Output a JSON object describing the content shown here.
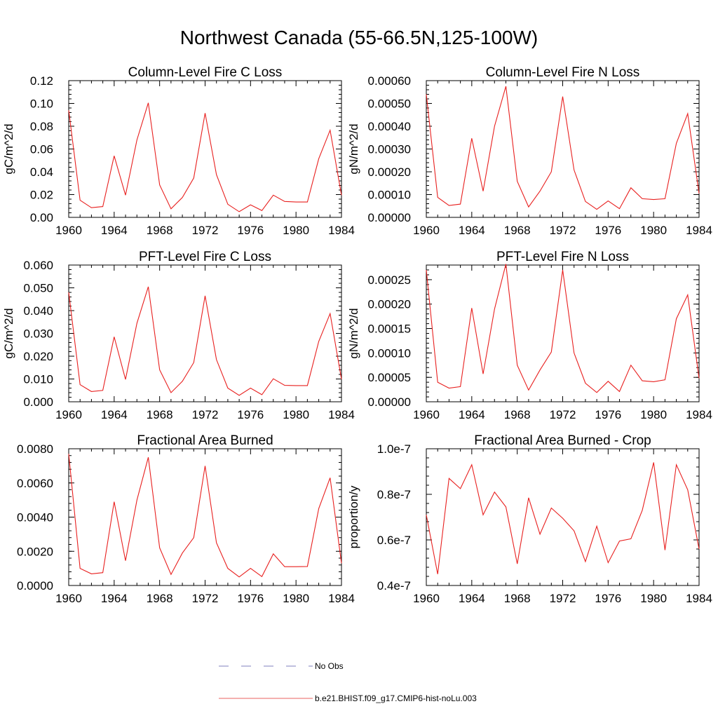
{
  "title": "Northwest Canada (55-66.5N,125-100W)",
  "legend": [
    {
      "label": "No Obs",
      "color": "#7f7fbf",
      "dash": true
    },
    {
      "label": "b.e21.BHIST.f09_g17.CMIP6-hist-noLu.003",
      "color": "#e8605f",
      "dash": false
    }
  ],
  "chart_data": [
    {
      "type": "line",
      "title": "Column-Level Fire C Loss",
      "xlabel": "",
      "ylabel": "gC/m^2/d",
      "xlim": [
        1960,
        1984
      ],
      "ylim": [
        0,
        0.12
      ],
      "xticks": [
        1960,
        1964,
        1968,
        1972,
        1976,
        1980,
        1984
      ],
      "yticks": [
        0,
        0.02,
        0.04,
        0.06,
        0.08,
        0.1,
        0.12
      ],
      "ytick_labels": [
        "0.00",
        "0.02",
        "0.04",
        "0.06",
        "0.08",
        "0.10",
        "0.12"
      ],
      "x": [
        1960,
        1961,
        1962,
        1963,
        1964,
        1965,
        1966,
        1967,
        1968,
        1969,
        1970,
        1971,
        1972,
        1973,
        1974,
        1975,
        1976,
        1977,
        1978,
        1979,
        1980,
        1981,
        1982,
        1983,
        1984
      ],
      "series": [
        {
          "values": [
            0.094,
            0.015,
            0.0085,
            0.0095,
            0.054,
            0.0195,
            0.068,
            0.1005,
            0.0285,
            0.0075,
            0.0175,
            0.0345,
            0.0915,
            0.0375,
            0.0115,
            0.005,
            0.011,
            0.006,
            0.0195,
            0.014,
            0.0135,
            0.0135,
            0.0515,
            0.0765,
            0.0195
          ],
          "color": "#e8201f"
        }
      ]
    },
    {
      "type": "line",
      "title": "Column-Level Fire N Loss",
      "xlabel": "",
      "ylabel": "gN/m^2/d",
      "xlim": [
        1960,
        1984
      ],
      "ylim": [
        0,
        0.0006
      ],
      "xticks": [
        1960,
        1964,
        1968,
        1972,
        1976,
        1980,
        1984
      ],
      "yticks": [
        0,
        0.0001,
        0.0002,
        0.0003,
        0.0004,
        0.0005,
        0.0006
      ],
      "ytick_labels": [
        "0.00000",
        "0.00010",
        "0.00020",
        "0.00030",
        "0.00040",
        "0.00050",
        "0.00060"
      ],
      "x": [
        1960,
        1961,
        1962,
        1963,
        1964,
        1965,
        1966,
        1967,
        1968,
        1969,
        1970,
        1971,
        1972,
        1973,
        1974,
        1975,
        1976,
        1977,
        1978,
        1979,
        1980,
        1981,
        1982,
        1983,
        1984
      ],
      "series": [
        {
          "values": [
            0.00054,
            8.8e-05,
            5.2e-05,
            5.8e-05,
            0.000347,
            0.000115,
            0.0004,
            0.000575,
            0.000158,
            4.6e-05,
            0.000115,
            0.0002,
            0.00053,
            0.000208,
            7e-05,
            3.5e-05,
            7.2e-05,
            3.8e-05,
            0.00013,
            8.2e-05,
            7.8e-05,
            8.2e-05,
            0.000325,
            0.000455,
            0.000105
          ],
          "color": "#e8201f"
        }
      ]
    },
    {
      "type": "line",
      "title": "PFT-Level Fire C Loss",
      "xlabel": "",
      "ylabel": "gC/m^2/d",
      "xlim": [
        1960,
        1984
      ],
      "ylim": [
        0,
        0.06
      ],
      "xticks": [
        1960,
        1964,
        1968,
        1972,
        1976,
        1980,
        1984
      ],
      "yticks": [
        0,
        0.01,
        0.02,
        0.03,
        0.04,
        0.05,
        0.06
      ],
      "ytick_labels": [
        "0.000",
        "0.010",
        "0.020",
        "0.030",
        "0.040",
        "0.050",
        "0.060"
      ],
      "x": [
        1960,
        1961,
        1962,
        1963,
        1964,
        1965,
        1966,
        1967,
        1968,
        1969,
        1970,
        1971,
        1972,
        1973,
        1974,
        1975,
        1976,
        1977,
        1978,
        1979,
        1980,
        1981,
        1982,
        1983,
        1984
      ],
      "series": [
        {
          "values": [
            0.048,
            0.0075,
            0.0045,
            0.005,
            0.0285,
            0.0098,
            0.0345,
            0.0505,
            0.014,
            0.004,
            0.009,
            0.0172,
            0.0465,
            0.0185,
            0.006,
            0.0028,
            0.006,
            0.0031,
            0.0101,
            0.0072,
            0.0071,
            0.0071,
            0.0265,
            0.0387,
            0.0099
          ],
          "color": "#e8201f"
        }
      ]
    },
    {
      "type": "line",
      "title": "PFT-Level Fire N Loss",
      "xlabel": "",
      "ylabel": "gN/m^2/d",
      "xlim": [
        1960,
        1984
      ],
      "ylim": [
        0,
        0.00028
      ],
      "xticks": [
        1960,
        1964,
        1968,
        1972,
        1976,
        1980,
        1984
      ],
      "yticks": [
        0,
        5e-05,
        0.0001,
        0.00015,
        0.0002,
        0.00025
      ],
      "ytick_labels": [
        "0.00000",
        "0.00005",
        "0.00010",
        "0.00015",
        "0.00020",
        "0.00025"
      ],
      "x": [
        1960,
        1961,
        1962,
        1963,
        1964,
        1965,
        1966,
        1967,
        1968,
        1969,
        1970,
        1971,
        1972,
        1973,
        1974,
        1975,
        1976,
        1977,
        1978,
        1979,
        1980,
        1981,
        1982,
        1983,
        1984
      ],
      "series": [
        {
          "values": [
            0.00027,
            4e-05,
            2.8e-05,
            3.1e-05,
            0.000192,
            5.7e-05,
            0.00019,
            0.000282,
            7.5e-05,
            2.4e-05,
            6.5e-05,
            0.000102,
            0.00027,
            0.0001,
            3.8e-05,
            1.9e-05,
            4.2e-05,
            2.1e-05,
            7.5e-05,
            4.3e-05,
            4.1e-05,
            4.5e-05,
            0.00017,
            0.000219,
            4.8e-05
          ],
          "color": "#e8201f"
        }
      ]
    },
    {
      "type": "line",
      "title": "Fractional Area Burned",
      "xlabel": "",
      "ylabel": "",
      "xlim": [
        1960,
        1984
      ],
      "ylim": [
        0,
        0.008
      ],
      "xticks": [
        1960,
        1964,
        1968,
        1972,
        1976,
        1980,
        1984
      ],
      "yticks": [
        0,
        0.002,
        0.004,
        0.006,
        0.008
      ],
      "ytick_labels": [
        "0.0000",
        "0.0020",
        "0.0040",
        "0.0060",
        "0.0080"
      ],
      "x": [
        1960,
        1961,
        1962,
        1963,
        1964,
        1965,
        1966,
        1967,
        1968,
        1969,
        1970,
        1971,
        1972,
        1973,
        1974,
        1975,
        1976,
        1977,
        1978,
        1979,
        1980,
        1981,
        1982,
        1983,
        1984
      ],
      "series": [
        {
          "values": [
            0.0077,
            0.001,
            0.00068,
            0.00075,
            0.0049,
            0.00145,
            0.005,
            0.0075,
            0.0022,
            0.00065,
            0.0019,
            0.0028,
            0.007,
            0.0025,
            0.001,
            0.0005,
            0.001,
            0.00052,
            0.00185,
            0.0011,
            0.0011,
            0.00111,
            0.0045,
            0.0063,
            0.0013
          ],
          "color": "#e8201f"
        }
      ]
    },
    {
      "type": "line",
      "title": "Fractional Area Burned - Crop",
      "xlabel": "",
      "ylabel": "proportion/y",
      "xlim": [
        1960,
        1984
      ],
      "ylim": [
        4e-08,
        1e-07
      ],
      "xticks": [
        1960,
        1964,
        1968,
        1972,
        1976,
        1980,
        1984
      ],
      "yticks": [
        4e-08,
        6e-08,
        8e-08,
        1e-07
      ],
      "ytick_labels": [
        "0.4e-7",
        "0.6e-7",
        "0.8e-7",
        "1.0e-7"
      ],
      "x": [
        1960,
        1961,
        1962,
        1963,
        1964,
        1965,
        1966,
        1967,
        1968,
        1969,
        1970,
        1971,
        1972,
        1973,
        1974,
        1975,
        1976,
        1977,
        1978,
        1979,
        1980,
        1981,
        1982,
        1983,
        1984
      ],
      "series": [
        {
          "values": [
            7.1e-08,
            4.5e-08,
            8.7e-08,
            8.25e-08,
            9.3e-08,
            7.1e-08,
            8.1e-08,
            7.45e-08,
            4.95e-08,
            7.85e-08,
            6.25e-08,
            7.4e-08,
            6.95e-08,
            6.4e-08,
            5.05e-08,
            6.6e-08,
            5e-08,
            5.95e-08,
            6.05e-08,
            7.3e-08,
            9.4e-08,
            5.55e-08,
            9.3e-08,
            8.2e-08,
            5.6e-08
          ],
          "color": "#e8201f"
        }
      ]
    }
  ]
}
